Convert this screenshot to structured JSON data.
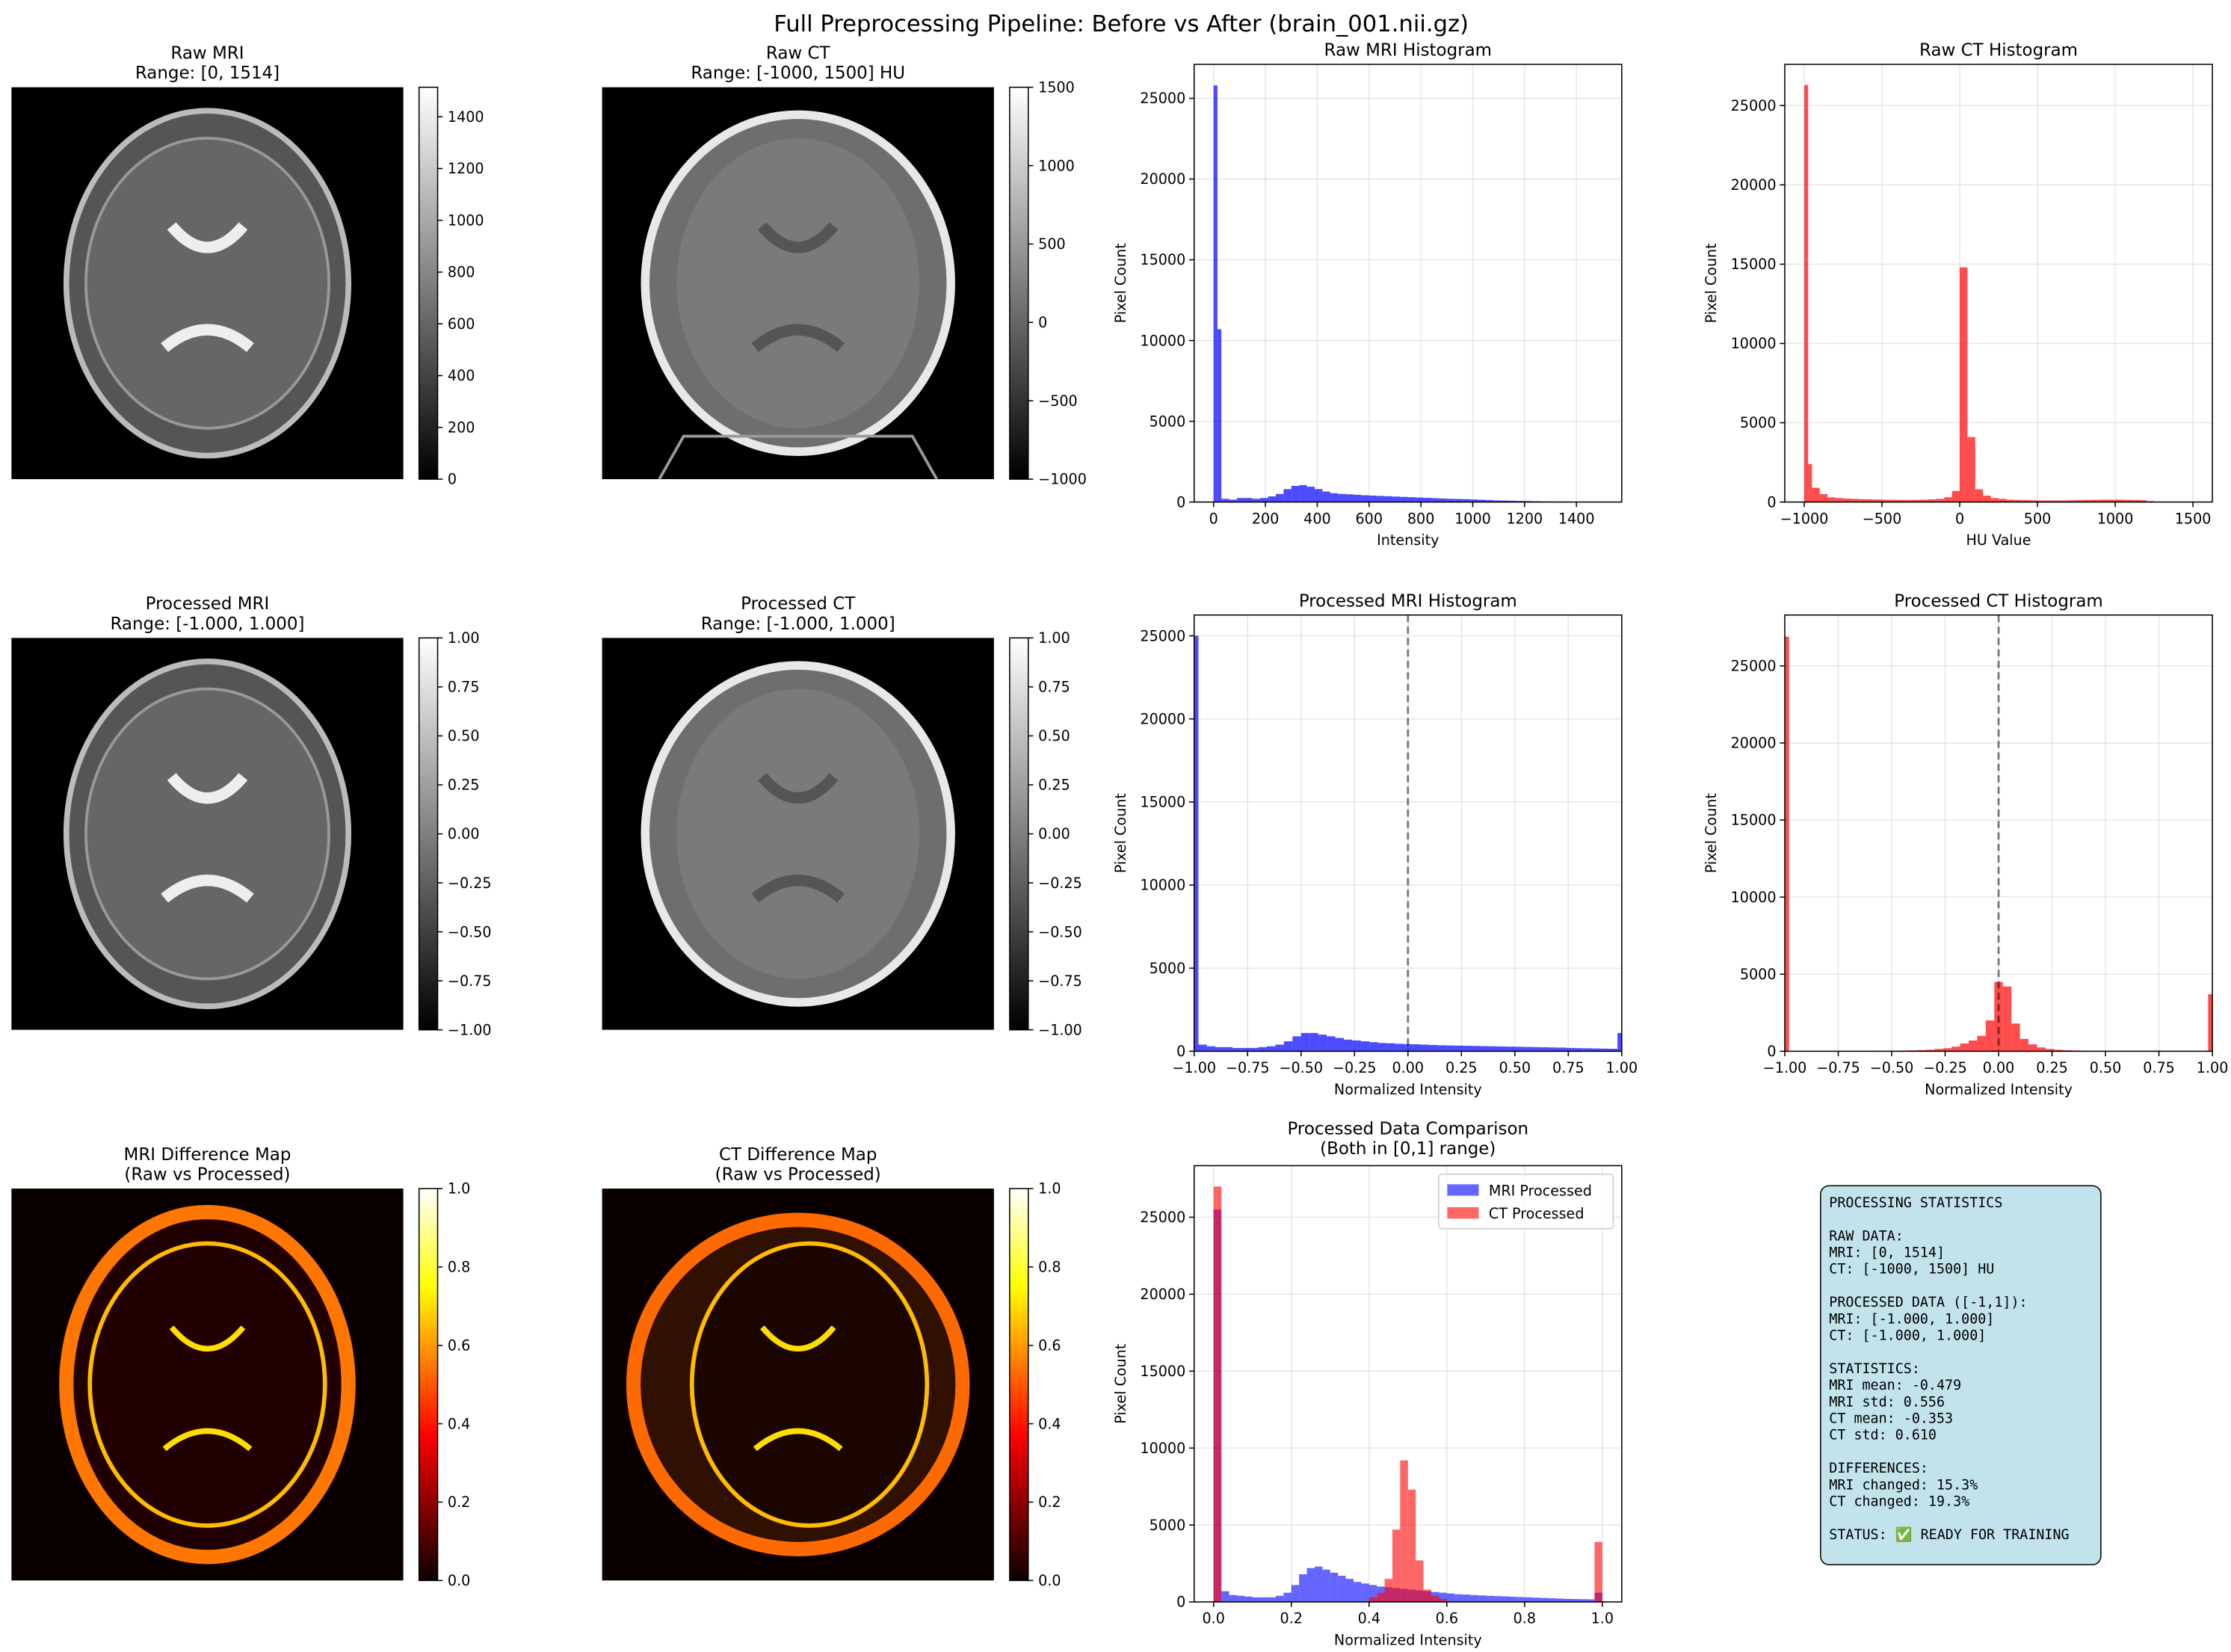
{
  "title": "Full Preprocessing Pipeline: Before vs After (brain_001.nii.gz)",
  "chart_data": [
    {
      "type": "image",
      "title": "Raw MRI",
      "subtitle": "Range: [0, 1514]",
      "cmap": "gray",
      "clim": [
        0,
        1514
      ],
      "cticks": [
        0,
        200,
        400,
        600,
        800,
        1000,
        1200,
        1400
      ]
    },
    {
      "type": "image",
      "title": "Raw CT",
      "subtitle": "Range: [-1000, 1500] HU",
      "cmap": "gray",
      "clim": [
        -1000,
        1500
      ],
      "cticks": [
        {
          "value": -1000,
          "label": "−1000"
        },
        {
          "value": -500,
          "label": "−500"
        },
        0,
        500,
        1000,
        1500
      ]
    },
    {
      "type": "histogram",
      "title": "Raw MRI Histogram",
      "xlabel": "Intensity",
      "ylabel": "Pixel Count",
      "color": "#0000ff",
      "alpha": 0.7,
      "grid": true,
      "bins": [
        0,
        15,
        30,
        60,
        90,
        120,
        150,
        180,
        210,
        240,
        270,
        300,
        330,
        360,
        390,
        420,
        450,
        480,
        510,
        540,
        570,
        600,
        630,
        660,
        690,
        720,
        750,
        780,
        810,
        840,
        870,
        900,
        930,
        960,
        990,
        1020,
        1050,
        1080,
        1110,
        1140,
        1170,
        1200,
        1230,
        1260,
        1290,
        1320,
        1350,
        1380,
        1410,
        1440,
        1470,
        1500
      ],
      "values": [
        25800,
        10700,
        200,
        150,
        250,
        250,
        200,
        250,
        350,
        500,
        800,
        1000,
        1050,
        950,
        800,
        650,
        550,
        500,
        480,
        450,
        420,
        400,
        380,
        360,
        340,
        320,
        300,
        280,
        260,
        240,
        220,
        200,
        190,
        180,
        160,
        140,
        120,
        100,
        90,
        80,
        70,
        60,
        50,
        40,
        35,
        30,
        25,
        20,
        10,
        5,
        2
      ],
      "xlim": [
        -75,
        1575
      ],
      "xticks": [
        0,
        200,
        400,
        600,
        800,
        1000,
        1200,
        1400
      ],
      "ylim": [
        0,
        27100
      ],
      "yticks": [
        0,
        5000,
        10000,
        15000,
        20000,
        25000
      ]
    },
    {
      "type": "histogram",
      "title": "Raw CT Histogram",
      "xlabel": "HU Value",
      "ylabel": "Pixel Count",
      "color": "#ff0000",
      "alpha": 0.7,
      "grid": true,
      "bins": [
        -1000,
        -975,
        -950,
        -900,
        -850,
        -800,
        -750,
        -700,
        -650,
        -600,
        -550,
        -500,
        -450,
        -400,
        -350,
        -300,
        -250,
        -200,
        -150,
        -100,
        -50,
        0,
        50,
        100,
        150,
        200,
        250,
        300,
        350,
        400,
        450,
        500,
        550,
        600,
        650,
        700,
        750,
        800,
        850,
        900,
        950,
        1000,
        1050,
        1100,
        1150,
        1200,
        1250,
        1300,
        1350,
        1400,
        1450,
        1500
      ],
      "values": [
        26300,
        2400,
        900,
        500,
        300,
        250,
        220,
        200,
        180,
        170,
        160,
        150,
        140,
        130,
        130,
        140,
        150,
        170,
        200,
        300,
        700,
        14800,
        4100,
        800,
        400,
        250,
        200,
        150,
        130,
        120,
        110,
        100,
        100,
        100,
        100,
        110,
        120,
        130,
        140,
        150,
        150,
        150,
        140,
        130,
        120,
        60,
        20,
        10,
        5,
        3,
        2
      ],
      "xlim": [
        -1125,
        1625
      ],
      "xticks": [
        {
          "value": -1000,
          "label": "−1000"
        },
        {
          "value": -500,
          "label": "−500"
        },
        0,
        500,
        1000,
        1500
      ],
      "ylim": [
        0,
        27600
      ],
      "yticks": [
        0,
        5000,
        10000,
        15000,
        20000,
        25000
      ]
    },
    {
      "type": "image",
      "title": "Processed MRI",
      "subtitle": "Range: [-1.000, 1.000]",
      "cmap": "gray",
      "clim": [
        -1,
        1
      ],
      "cticks": [
        {
          "value": -1,
          "label": "−1.00"
        },
        {
          "value": -0.75,
          "label": "−0.75"
        },
        {
          "value": -0.5,
          "label": "−0.50"
        },
        {
          "value": -0.25,
          "label": "−0.25"
        },
        {
          "value": 0,
          "label": "0.00"
        },
        {
          "value": 0.25,
          "label": "0.25"
        },
        {
          "value": 0.5,
          "label": "0.50"
        },
        {
          "value": 0.75,
          "label": "0.75"
        },
        {
          "value": 1,
          "label": "1.00"
        }
      ]
    },
    {
      "type": "image",
      "title": "Processed CT",
      "subtitle": "Range: [-1.000, 1.000]",
      "cmap": "gray",
      "clim": [
        -1,
        1
      ],
      "cticks": [
        {
          "value": -1,
          "label": "−1.00"
        },
        {
          "value": -0.75,
          "label": "−0.75"
        },
        {
          "value": -0.5,
          "label": "−0.50"
        },
        {
          "value": -0.25,
          "label": "−0.25"
        },
        {
          "value": 0,
          "label": "0.00"
        },
        {
          "value": 0.25,
          "label": "0.25"
        },
        {
          "value": 0.5,
          "label": "0.50"
        },
        {
          "value": 0.75,
          "label": "0.75"
        },
        {
          "value": 1,
          "label": "1.00"
        }
      ]
    },
    {
      "type": "histogram",
      "title": "Processed MRI Histogram",
      "xlabel": "Normalized Intensity",
      "ylabel": "Pixel Count",
      "color": "#0000ff",
      "alpha": 0.7,
      "grid": true,
      "vline": 0,
      "bins": [
        -1,
        -0.98,
        -0.94,
        -0.9,
        -0.86,
        -0.82,
        -0.78,
        -0.74,
        -0.7,
        -0.66,
        -0.62,
        -0.58,
        -0.54,
        -0.5,
        -0.46,
        -0.42,
        -0.38,
        -0.34,
        -0.3,
        -0.26,
        -0.22,
        -0.18,
        -0.14,
        -0.1,
        -0.06,
        -0.02,
        0.02,
        0.06,
        0.1,
        0.14,
        0.18,
        0.22,
        0.26,
        0.3,
        0.34,
        0.38,
        0.42,
        0.46,
        0.5,
        0.54,
        0.58,
        0.62,
        0.66,
        0.7,
        0.74,
        0.78,
        0.82,
        0.86,
        0.9,
        0.94,
        0.98,
        1
      ],
      "values": [
        25000,
        400,
        300,
        250,
        250,
        200,
        200,
        200,
        250,
        300,
        400,
        600,
        900,
        1100,
        1100,
        1000,
        900,
        800,
        700,
        650,
        600,
        550,
        500,
        480,
        450,
        430,
        420,
        400,
        380,
        360,
        350,
        340,
        330,
        320,
        310,
        300,
        290,
        280,
        270,
        260,
        250,
        240,
        230,
        220,
        200,
        190,
        180,
        170,
        160,
        150,
        1100
      ],
      "xlim": [
        -1,
        1
      ],
      "xticks": [
        {
          "value": -1,
          "label": "−1.00"
        },
        {
          "value": -0.75,
          "label": "−0.75"
        },
        {
          "value": -0.5,
          "label": "−0.50"
        },
        {
          "value": -0.25,
          "label": "−0.25"
        },
        {
          "value": 0,
          "label": "0.00"
        },
        {
          "value": 0.25,
          "label": "0.25"
        },
        {
          "value": 0.5,
          "label": "0.50"
        },
        {
          "value": 0.75,
          "label": "0.75"
        },
        {
          "value": 1,
          "label": "1.00"
        }
      ],
      "ylim": [
        0,
        26250
      ],
      "yticks": [
        0,
        5000,
        10000,
        15000,
        20000,
        25000
      ]
    },
    {
      "type": "histogram",
      "title": "Processed CT Histogram",
      "xlabel": "Normalized Intensity",
      "ylabel": "Pixel Count",
      "color": "#ff0000",
      "alpha": 0.7,
      "grid": true,
      "vline": 0,
      "bins": [
        -1,
        -0.98,
        -0.94,
        -0.9,
        -0.86,
        -0.82,
        -0.78,
        -0.74,
        -0.7,
        -0.66,
        -0.62,
        -0.58,
        -0.54,
        -0.5,
        -0.46,
        -0.42,
        -0.38,
        -0.34,
        -0.3,
        -0.26,
        -0.22,
        -0.18,
        -0.14,
        -0.1,
        -0.06,
        -0.02,
        0.02,
        0.06,
        0.1,
        0.14,
        0.18,
        0.22,
        0.26,
        0.3,
        0.34,
        0.38,
        0.42,
        0.46,
        0.5,
        0.54,
        0.58,
        0.62,
        0.66,
        0.7,
        0.74,
        0.78,
        0.82,
        0.86,
        0.9,
        0.94,
        0.98,
        1
      ],
      "values": [
        26900,
        30,
        20,
        20,
        20,
        20,
        20,
        20,
        20,
        20,
        20,
        30,
        30,
        40,
        50,
        60,
        80,
        100,
        150,
        200,
        300,
        500,
        700,
        1000,
        2000,
        4500,
        4200,
        1800,
        800,
        450,
        250,
        150,
        100,
        70,
        50,
        40,
        30,
        30,
        30,
        30,
        30,
        30,
        30,
        30,
        30,
        30,
        30,
        30,
        30,
        40,
        3700
      ],
      "xlim": [
        -1,
        1
      ],
      "xticks": [
        {
          "value": -1,
          "label": "−1.00"
        },
        {
          "value": -0.75,
          "label": "−0.75"
        },
        {
          "value": -0.5,
          "label": "−0.50"
        },
        {
          "value": -0.25,
          "label": "−0.25"
        },
        {
          "value": 0,
          "label": "0.00"
        },
        {
          "value": 0.25,
          "label": "0.25"
        },
        {
          "value": 0.5,
          "label": "0.50"
        },
        {
          "value": 0.75,
          "label": "0.75"
        },
        {
          "value": 1,
          "label": "1.00"
        }
      ],
      "ylim": [
        0,
        28300
      ],
      "yticks": [
        0,
        5000,
        10000,
        15000,
        20000,
        25000
      ]
    },
    {
      "type": "image",
      "title": "MRI Difference Map",
      "subtitle": "(Raw vs Processed)",
      "cmap": "hot",
      "clim": [
        0,
        1
      ],
      "cticks": [
        {
          "value": 0,
          "label": "0.0"
        },
        {
          "value": 0.2,
          "label": "0.2"
        },
        {
          "value": 0.4,
          "label": "0.4"
        },
        {
          "value": 0.6,
          "label": "0.6"
        },
        {
          "value": 0.8,
          "label": "0.8"
        },
        {
          "value": 1,
          "label": "1.0"
        }
      ]
    },
    {
      "type": "image",
      "title": "CT Difference Map",
      "subtitle": "(Raw vs Processed)",
      "cmap": "hot",
      "clim": [
        0,
        1
      ],
      "cticks": [
        {
          "value": 0,
          "label": "0.0"
        },
        {
          "value": 0.2,
          "label": "0.2"
        },
        {
          "value": 0.4,
          "label": "0.4"
        },
        {
          "value": 0.6,
          "label": "0.6"
        },
        {
          "value": 0.8,
          "label": "0.8"
        },
        {
          "value": 1,
          "label": "1.0"
        }
      ]
    },
    {
      "type": "histogram",
      "title": "Processed Data Comparison",
      "subtitle": "(Both in [0,1] range)",
      "xlabel": "Normalized Intensity",
      "ylabel": "Pixel Count",
      "alpha": 0.6,
      "grid": true,
      "legend": "upper right",
      "bins": [
        0,
        0.02,
        0.04,
        0.06,
        0.08,
        0.1,
        0.12,
        0.14,
        0.16,
        0.18,
        0.2,
        0.22,
        0.24,
        0.26,
        0.28,
        0.3,
        0.32,
        0.34,
        0.36,
        0.38,
        0.4,
        0.42,
        0.44,
        0.46,
        0.48,
        0.5,
        0.52,
        0.54,
        0.56,
        0.58,
        0.6,
        0.62,
        0.64,
        0.66,
        0.68,
        0.7,
        0.72,
        0.74,
        0.76,
        0.78,
        0.8,
        0.82,
        0.84,
        0.86,
        0.88,
        0.9,
        0.92,
        0.94,
        0.96,
        0.98,
        1
      ],
      "series": [
        {
          "name": "MRI Processed",
          "color": "#0000ff",
          "values": [
            25500,
            700,
            450,
            400,
            350,
            300,
            300,
            300,
            400,
            600,
            1100,
            1800,
            2200,
            2300,
            2100,
            1900,
            1700,
            1500,
            1300,
            1200,
            1100,
            1000,
            950,
            900,
            850,
            800,
            750,
            700,
            650,
            600,
            550,
            500,
            480,
            450,
            420,
            400,
            380,
            360,
            340,
            320,
            300,
            280,
            260,
            240,
            220,
            200,
            190,
            180,
            170,
            600
          ]
        },
        {
          "name": "CT Processed",
          "color": "#ff0000",
          "values": [
            27000,
            30,
            30,
            30,
            30,
            30,
            30,
            30,
            30,
            30,
            30,
            30,
            30,
            30,
            30,
            30,
            30,
            30,
            30,
            30,
            300,
            600,
            1500,
            4700,
            9200,
            7300,
            2700,
            800,
            400,
            200,
            40,
            40,
            40,
            40,
            40,
            40,
            40,
            40,
            40,
            40,
            40,
            40,
            40,
            40,
            40,
            40,
            40,
            40,
            40,
            3900
          ]
        }
      ],
      "xlim": [
        -0.05,
        1.05
      ],
      "xticks": [
        {
          "value": 0,
          "label": "0.0"
        },
        {
          "value": 0.2,
          "label": "0.2"
        },
        {
          "value": 0.4,
          "label": "0.4"
        },
        {
          "value": 0.6,
          "label": "0.6"
        },
        {
          "value": 0.8,
          "label": "0.8"
        },
        {
          "value": 1,
          "label": "1.0"
        }
      ],
      "ylim": [
        0,
        28350
      ],
      "yticks": [
        0,
        5000,
        10000,
        15000,
        20000,
        25000
      ]
    }
  ],
  "stats_box": {
    "heading": "PROCESSING STATISTICS",
    "sections": [
      [
        "RAW DATA:",
        "MRI: [0, 1514]",
        "CT: [-1000, 1500] HU"
      ],
      [
        "PROCESSED DATA ([-1,1]):",
        "MRI: [-1.000, 1.000]",
        "CT: [-1.000, 1.000]"
      ],
      [
        "STATISTICS:",
        "MRI mean: -0.479",
        "MRI std: 0.556",
        "CT mean: -0.353",
        "CT std: 0.610"
      ],
      [
        "DIFFERENCES:",
        "MRI changed: 15.3%",
        "CT changed: 19.3%"
      ],
      [
        "STATUS: ✅ READY FOR TRAINING"
      ]
    ]
  }
}
